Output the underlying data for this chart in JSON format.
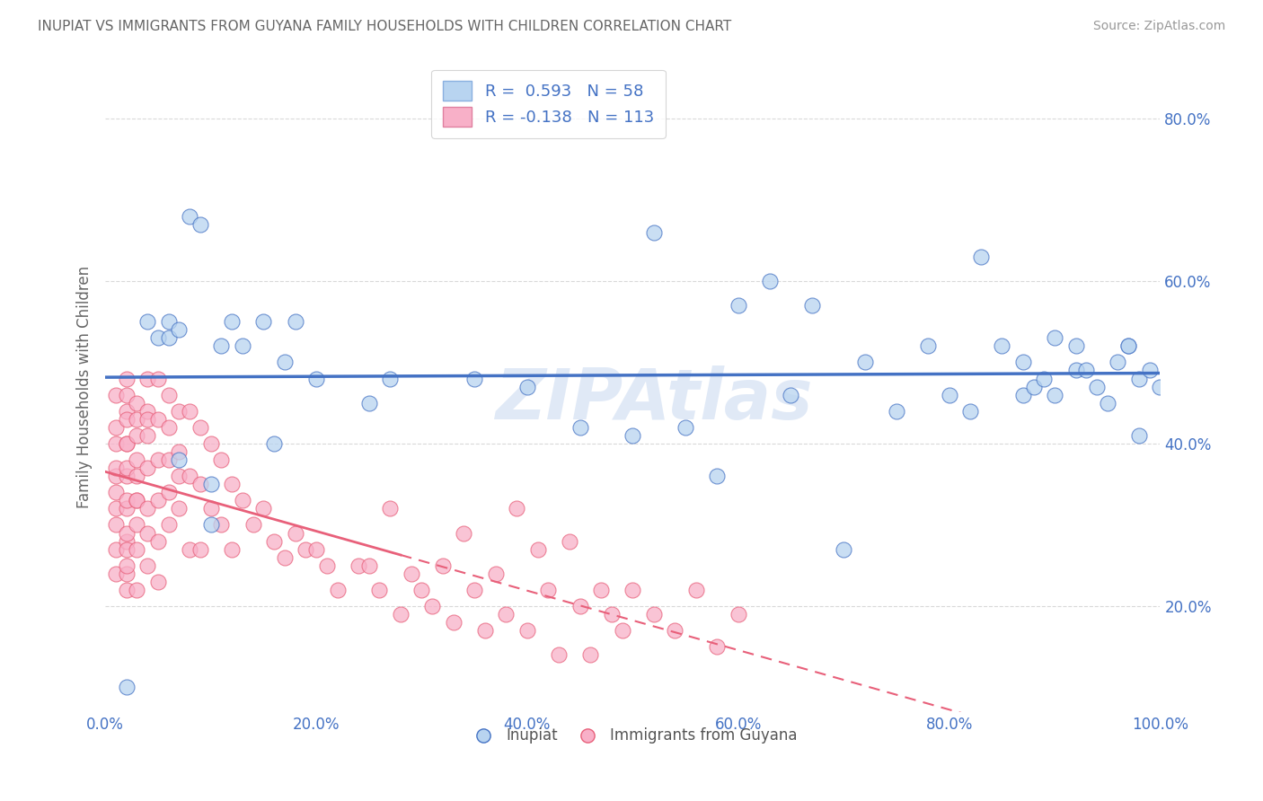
{
  "title": "INUPIAT VS IMMIGRANTS FROM GUYANA FAMILY HOUSEHOLDS WITH CHILDREN CORRELATION CHART",
  "source": "Source: ZipAtlas.com",
  "xlabel": "",
  "ylabel": "Family Households with Children",
  "xlim": [
    0.0,
    1.0
  ],
  "ylim": [
    0.07,
    0.87
  ],
  "x_tick_labels": [
    "0.0%",
    "20.0%",
    "40.0%",
    "60.0%",
    "80.0%",
    "100.0%"
  ],
  "x_tick_vals": [
    0.0,
    0.2,
    0.4,
    0.6,
    0.8,
    1.0
  ],
  "y_tick_labels": [
    "20.0%",
    "40.0%",
    "60.0%",
    "80.0%"
  ],
  "y_tick_vals": [
    0.2,
    0.4,
    0.6,
    0.8
  ],
  "inupiat_R": 0.593,
  "inupiat_N": 58,
  "guyana_R": -0.138,
  "guyana_N": 113,
  "inupiat_color": "#b8d4f0",
  "guyana_color": "#f8b0c8",
  "inupiat_line_color": "#4472c4",
  "guyana_line_color": "#e8607a",
  "watermark_color": "#c8d8f0",
  "background_color": "#ffffff",
  "inupiat_x": [
    0.02,
    0.04,
    0.05,
    0.06,
    0.06,
    0.07,
    0.07,
    0.08,
    0.09,
    0.1,
    0.1,
    0.11,
    0.12,
    0.13,
    0.15,
    0.16,
    0.17,
    0.18,
    0.2,
    0.25,
    0.27,
    0.35,
    0.4,
    0.45,
    0.5,
    0.52,
    0.55,
    0.58,
    0.6,
    0.63,
    0.65,
    0.67,
    0.7,
    0.72,
    0.75,
    0.78,
    0.8,
    0.82,
    0.83,
    0.85,
    0.87,
    0.9,
    0.92,
    0.95,
    0.97,
    0.98,
    0.87,
    0.88,
    0.89,
    0.9,
    0.92,
    0.93,
    0.94,
    0.96,
    0.97,
    0.98,
    0.99,
    1.0
  ],
  "inupiat_y": [
    0.1,
    0.55,
    0.53,
    0.53,
    0.55,
    0.38,
    0.54,
    0.68,
    0.67,
    0.3,
    0.35,
    0.52,
    0.55,
    0.52,
    0.55,
    0.4,
    0.5,
    0.55,
    0.48,
    0.45,
    0.48,
    0.48,
    0.47,
    0.42,
    0.41,
    0.66,
    0.42,
    0.36,
    0.57,
    0.6,
    0.46,
    0.57,
    0.27,
    0.5,
    0.44,
    0.52,
    0.46,
    0.44,
    0.63,
    0.52,
    0.46,
    0.46,
    0.49,
    0.45,
    0.52,
    0.41,
    0.5,
    0.47,
    0.48,
    0.53,
    0.52,
    0.49,
    0.47,
    0.5,
    0.52,
    0.48,
    0.49,
    0.47
  ],
  "guyana_x": [
    0.01,
    0.01,
    0.01,
    0.01,
    0.01,
    0.01,
    0.01,
    0.01,
    0.01,
    0.01,
    0.02,
    0.02,
    0.02,
    0.02,
    0.02,
    0.02,
    0.02,
    0.02,
    0.02,
    0.02,
    0.02,
    0.02,
    0.02,
    0.02,
    0.02,
    0.02,
    0.03,
    0.03,
    0.03,
    0.03,
    0.03,
    0.03,
    0.03,
    0.03,
    0.03,
    0.03,
    0.04,
    0.04,
    0.04,
    0.04,
    0.04,
    0.04,
    0.04,
    0.04,
    0.05,
    0.05,
    0.05,
    0.05,
    0.05,
    0.05,
    0.06,
    0.06,
    0.06,
    0.06,
    0.06,
    0.07,
    0.07,
    0.07,
    0.07,
    0.08,
    0.08,
    0.08,
    0.09,
    0.09,
    0.09,
    0.1,
    0.1,
    0.11,
    0.11,
    0.12,
    0.12,
    0.13,
    0.14,
    0.15,
    0.16,
    0.17,
    0.18,
    0.19,
    0.2,
    0.21,
    0.22,
    0.24,
    0.25,
    0.26,
    0.27,
    0.28,
    0.29,
    0.3,
    0.31,
    0.32,
    0.33,
    0.34,
    0.35,
    0.36,
    0.37,
    0.38,
    0.39,
    0.4,
    0.41,
    0.42,
    0.43,
    0.44,
    0.45,
    0.46,
    0.47,
    0.48,
    0.49,
    0.5,
    0.52,
    0.54,
    0.56,
    0.58,
    0.6
  ],
  "guyana_y": [
    0.46,
    0.4,
    0.36,
    0.32,
    0.3,
    0.27,
    0.24,
    0.37,
    0.34,
    0.42,
    0.46,
    0.4,
    0.36,
    0.32,
    0.28,
    0.27,
    0.24,
    0.22,
    0.44,
    0.4,
    0.37,
    0.33,
    0.29,
    0.25,
    0.48,
    0.43,
    0.45,
    0.41,
    0.36,
    0.33,
    0.3,
    0.27,
    0.22,
    0.43,
    0.38,
    0.33,
    0.44,
    0.41,
    0.37,
    0.32,
    0.29,
    0.25,
    0.48,
    0.43,
    0.48,
    0.43,
    0.38,
    0.33,
    0.28,
    0.23,
    0.42,
    0.38,
    0.34,
    0.3,
    0.46,
    0.39,
    0.32,
    0.44,
    0.36,
    0.44,
    0.36,
    0.27,
    0.42,
    0.35,
    0.27,
    0.4,
    0.32,
    0.38,
    0.3,
    0.35,
    0.27,
    0.33,
    0.3,
    0.32,
    0.28,
    0.26,
    0.29,
    0.27,
    0.27,
    0.25,
    0.22,
    0.25,
    0.25,
    0.22,
    0.32,
    0.19,
    0.24,
    0.22,
    0.2,
    0.25,
    0.18,
    0.29,
    0.22,
    0.17,
    0.24,
    0.19,
    0.32,
    0.17,
    0.27,
    0.22,
    0.14,
    0.28,
    0.2,
    0.14,
    0.22,
    0.19,
    0.17,
    0.22,
    0.19,
    0.17,
    0.22,
    0.15,
    0.19
  ]
}
